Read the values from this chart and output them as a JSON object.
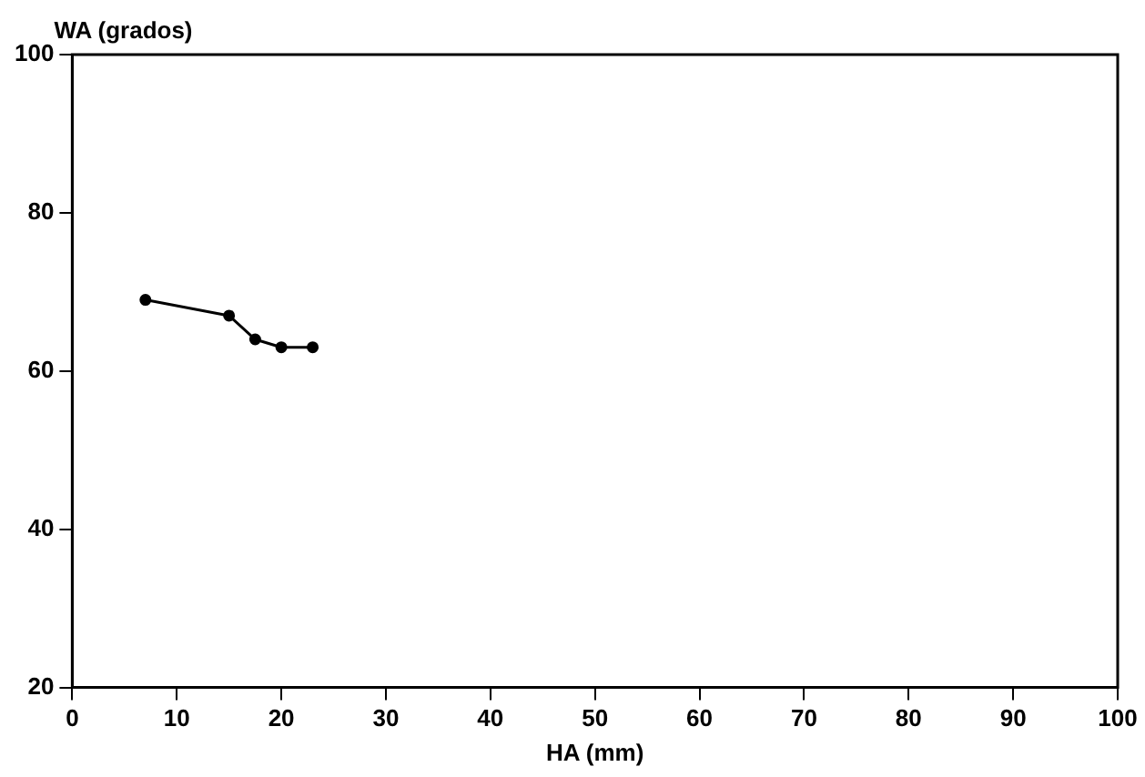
{
  "chart_data": {
    "type": "line",
    "xlabel": "HA (mm)",
    "ylabel": "WA (grados)",
    "x": [
      7,
      15,
      17.5,
      20,
      23
    ],
    "series": [
      {
        "color": "#000000",
        "values": [
          69,
          67,
          64,
          63,
          63
        ]
      }
    ],
    "xlim": [
      0,
      100
    ],
    "xticks": [
      0,
      10,
      20,
      30,
      40,
      50,
      60,
      70,
      80,
      90,
      100
    ],
    "ylim": [
      20,
      100
    ],
    "yticks": [
      20,
      40,
      60,
      80,
      100
    ],
    "grid": false,
    "legend": false,
    "marker": "circle",
    "line_style": "solid"
  }
}
